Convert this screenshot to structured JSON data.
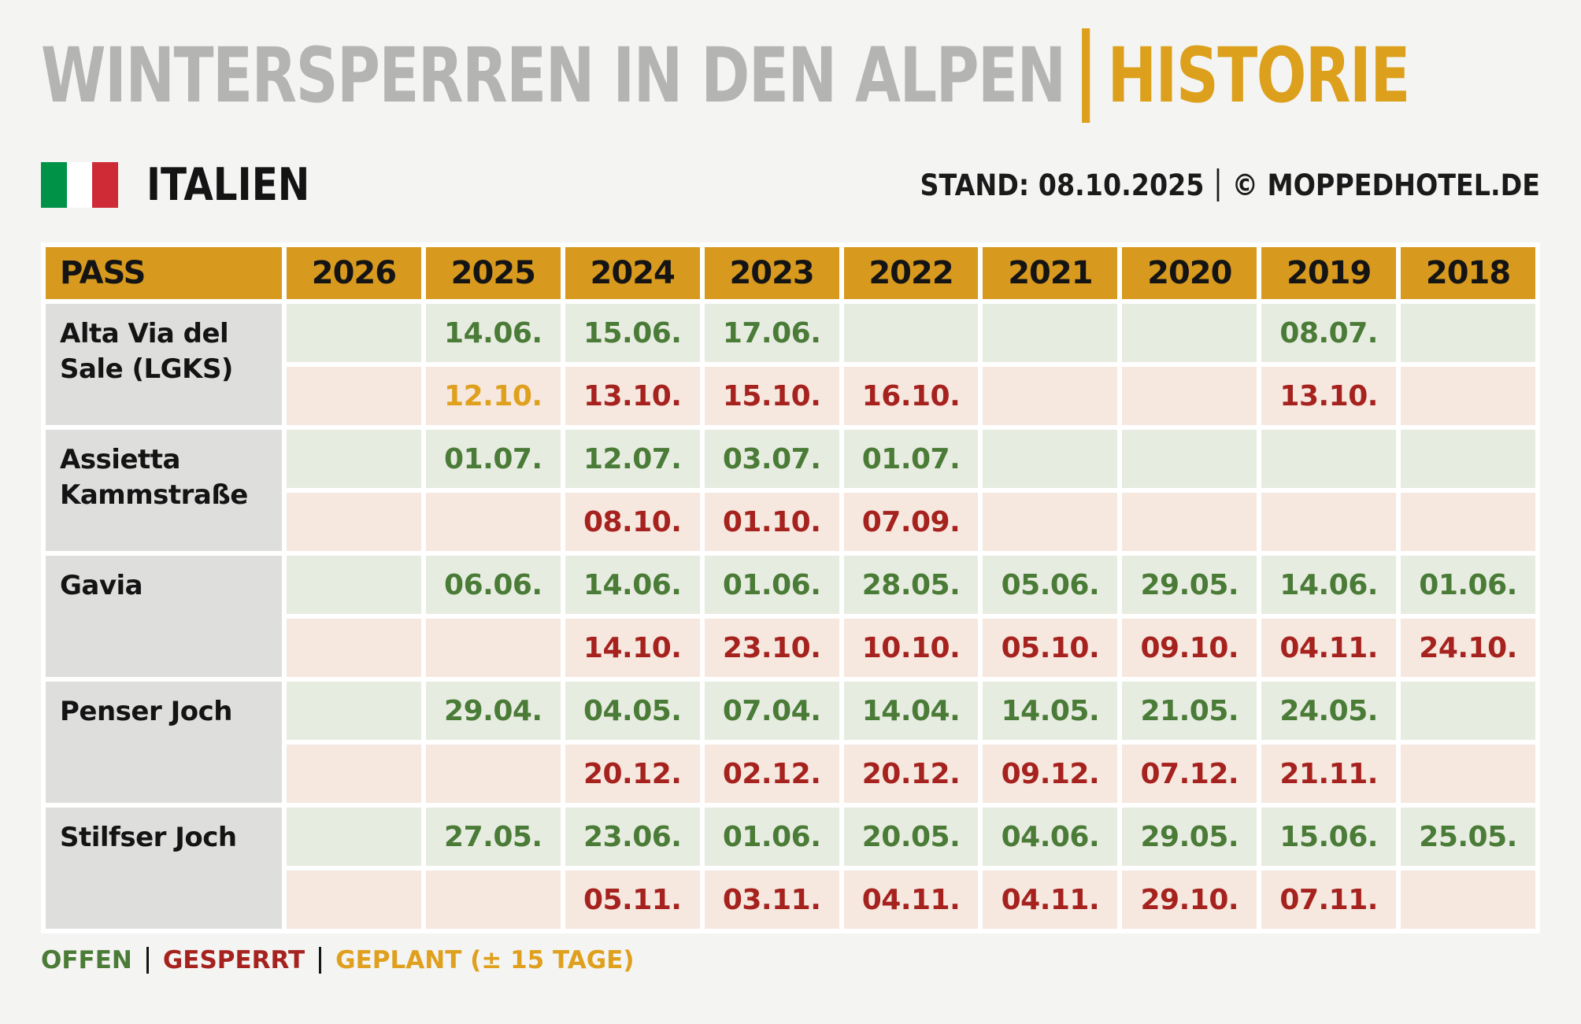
{
  "header": {
    "title_main": "WINTERSPERREN IN DEN ALPEN",
    "title_accent": "HISTORIE",
    "country": "ITALIEN",
    "stand": "STAND: 08.10.2025",
    "copyright": "© MOPPEDHOTEL.DE"
  },
  "legend": {
    "offen": "OFFEN",
    "gesperrt": "GESPERRT",
    "geplant": "GEPLANT (± 15 TAGE)"
  },
  "colors": {
    "page_bg": "#F4F4F3",
    "title_gray": "#B4B4B3",
    "accent_gold": "#DCA01C",
    "header_cell_gold": "#D89A1E",
    "open_green_text": "#4A7B37",
    "open_green_bg": "#E7ECE1",
    "closed_red_text": "#A6221E",
    "closed_red_bg": "#F6E7DF",
    "geplant_gold_text": "#DFA01D",
    "pass_cell_gray": "#DEDEDD",
    "flag_green": "#009246",
    "flag_red": "#CE2B37"
  },
  "chart_data": {
    "type": "table",
    "title": "WINTERSPERREN IN DEN ALPEN | HISTORIE",
    "country": "ITALIEN",
    "stand": "08.10.2025",
    "source": "MOPPEDHOTEL.DE",
    "columns": [
      "PASS",
      "2026",
      "2025",
      "2024",
      "2023",
      "2022",
      "2021",
      "2020",
      "2019",
      "2018"
    ],
    "years": [
      "2026",
      "2025",
      "2024",
      "2023",
      "2022",
      "2021",
      "2020",
      "2019",
      "2018"
    ],
    "legend": [
      "OFFEN",
      "GESPERRT",
      "GEPLANT (± 15 TAGE)"
    ],
    "rows": [
      {
        "pass": "Alta Via del Sale (LGKS)",
        "open": [
          "",
          "14.06.",
          "15.06.",
          "17.06.",
          "",
          "",
          "",
          "08.07.",
          ""
        ],
        "closed": [
          "",
          {
            "text": "12.10.",
            "status": "geplant"
          },
          "13.10.",
          "15.10.",
          "16.10.",
          "",
          "",
          "13.10.",
          ""
        ]
      },
      {
        "pass": "Assietta Kammstraße",
        "open": [
          "",
          "01.07.",
          "12.07.",
          "03.07.",
          "01.07.",
          "",
          "",
          "",
          ""
        ],
        "closed": [
          "",
          "",
          "08.10.",
          "01.10.",
          "07.09.",
          "",
          "",
          "",
          ""
        ]
      },
      {
        "pass": "Gavia",
        "open": [
          "",
          "06.06.",
          "14.06.",
          "01.06.",
          "28.05.",
          "05.06.",
          "29.05.",
          "14.06.",
          "01.06."
        ],
        "closed": [
          "",
          "",
          "14.10.",
          "23.10.",
          "10.10.",
          "05.10.",
          "09.10.",
          "04.11.",
          "24.10."
        ]
      },
      {
        "pass": "Penser Joch",
        "open": [
          "",
          "29.04.",
          "04.05.",
          "07.04.",
          "14.04.",
          "14.05.",
          "21.05.",
          "24.05.",
          ""
        ],
        "closed": [
          "",
          "",
          "20.12.",
          "02.12.",
          "20.12.",
          "09.12.",
          "07.12.",
          "21.11.",
          ""
        ]
      },
      {
        "pass": "Stilfser Joch",
        "open": [
          "",
          "27.05.",
          "23.06.",
          "01.06.",
          "20.05.",
          "04.06.",
          "29.05.",
          "15.06.",
          "25.05."
        ],
        "closed": [
          "",
          "",
          "05.11.",
          "03.11.",
          "04.11.",
          "04.11.",
          "29.10.",
          "07.11.",
          ""
        ]
      }
    ]
  }
}
